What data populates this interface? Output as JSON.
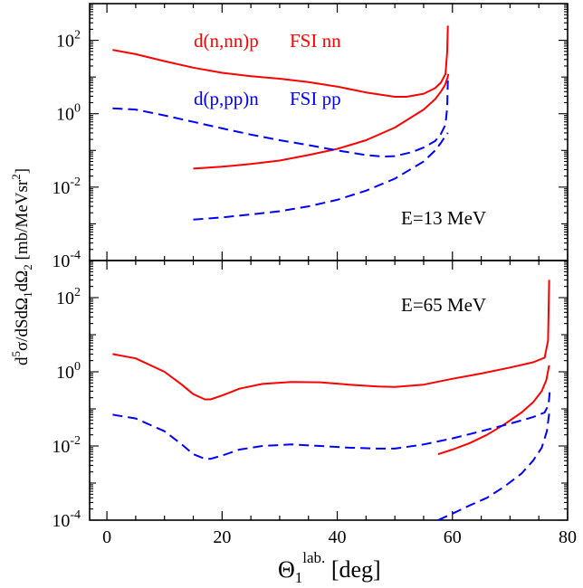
{
  "chart_data": [
    {
      "type": "line",
      "panel": "top",
      "x_scale": "linear",
      "y_scale": "log",
      "xlim": [
        -3,
        80
      ],
      "ylim": [
        0.0001,
        1000
      ],
      "annotation": "E=13 MeV",
      "legend": [
        {
          "text": "d(n,nn)p",
          "color": "#ff0000"
        },
        {
          "text": "FSI nn",
          "color": "#ff0000"
        },
        {
          "text": "d(p,pp)n",
          "color": "#0000ff"
        },
        {
          "text": "FSI pp",
          "color": "#0000ff"
        }
      ],
      "series": [
        {
          "color": "#ff0000",
          "dash": "solid",
          "x": [
            1,
            5,
            10,
            15,
            20,
            25,
            30,
            35,
            40,
            45,
            50,
            52,
            55,
            57,
            58,
            58.8,
            59.1,
            59.2
          ],
          "y": [
            55,
            42,
            27,
            18,
            13,
            10.5,
            9,
            7.3,
            5.5,
            3.8,
            2.9,
            2.9,
            3.5,
            5,
            7,
            12,
            50,
            250
          ]
        },
        {
          "color": "#ff0000",
          "dash": "solid",
          "x": [
            15,
            20,
            25,
            30,
            35,
            40,
            45,
            50,
            55,
            57,
            58,
            58.7,
            59.1,
            59.3
          ],
          "y": [
            0.032,
            0.036,
            0.043,
            0.053,
            0.075,
            0.11,
            0.19,
            0.42,
            1.3,
            2.5,
            4,
            6,
            9,
            12
          ]
        },
        {
          "color": "#0000ff",
          "dash": "dashed",
          "x": [
            1,
            5,
            10,
            15,
            20,
            25,
            30,
            35,
            40,
            45,
            48,
            50,
            53,
            55,
            57,
            58,
            58.8,
            59.1,
            59.2
          ],
          "y": [
            1.4,
            1.3,
            0.9,
            0.6,
            0.4,
            0.27,
            0.19,
            0.14,
            0.1,
            0.075,
            0.068,
            0.07,
            0.09,
            0.12,
            0.18,
            0.28,
            0.5,
            1.5,
            8
          ]
        },
        {
          "color": "#0000ff",
          "dash": "dashed",
          "x": [
            15,
            20,
            25,
            30,
            35,
            40,
            45,
            50,
            55,
            57,
            58,
            58.8,
            59.2
          ],
          "y": [
            0.0013,
            0.0015,
            0.0018,
            0.0022,
            0.003,
            0.0045,
            0.008,
            0.017,
            0.05,
            0.1,
            0.16,
            0.25,
            0.3
          ]
        }
      ]
    },
    {
      "type": "line",
      "panel": "bottom",
      "x_scale": "linear",
      "y_scale": "log",
      "xlim": [
        -3,
        80
      ],
      "ylim": [
        0.0001,
        1000
      ],
      "annotation": "E=65 MeV",
      "series": [
        {
          "color": "#ff0000",
          "dash": "solid",
          "x": [
            1,
            5,
            10,
            13,
            15,
            17,
            18,
            20,
            23,
            27,
            32,
            37,
            42,
            47,
            50,
            55,
            60,
            65,
            70,
            74,
            76,
            76.6,
            76.8
          ],
          "y": [
            3,
            2.3,
            1,
            0.45,
            0.25,
            0.18,
            0.18,
            0.23,
            0.35,
            0.47,
            0.53,
            0.52,
            0.45,
            0.4,
            0.39,
            0.45,
            0.65,
            0.9,
            1.3,
            1.8,
            2.4,
            7,
            300
          ]
        },
        {
          "color": "#ff0000",
          "dash": "solid",
          "x": [
            57.5,
            60,
            63,
            66,
            69,
            72,
            74,
            75.5,
            76.3,
            76.8
          ],
          "y": [
            0.006,
            0.008,
            0.012,
            0.02,
            0.038,
            0.08,
            0.15,
            0.3,
            0.6,
            1.5
          ]
        },
        {
          "color": "#0000ff",
          "dash": "dashed",
          "x": [
            1,
            5,
            10,
            13,
            15,
            17,
            18,
            20,
            23,
            27,
            32,
            37,
            42,
            47,
            50,
            55,
            60,
            65,
            70,
            74,
            76,
            76.7,
            76.9
          ],
          "y": [
            0.07,
            0.055,
            0.025,
            0.011,
            0.006,
            0.0045,
            0.0045,
            0.0055,
            0.008,
            0.01,
            0.011,
            0.01,
            0.009,
            0.0085,
            0.0085,
            0.011,
            0.016,
            0.025,
            0.04,
            0.06,
            0.08,
            0.13,
            0.3
          ]
        },
        {
          "color": "#0000ff",
          "dash": "dashed",
          "x": [
            57.5,
            60,
            63,
            66,
            69,
            72,
            74,
            75.5,
            76.4,
            76.9
          ],
          "y": [
            0.0001,
            0.00015,
            0.00025,
            0.0004,
            0.0008,
            0.0018,
            0.004,
            0.009,
            0.025,
            0.1
          ]
        }
      ]
    }
  ],
  "axes": {
    "x_ticks": [
      "0",
      "20",
      "40",
      "60",
      "80"
    ],
    "x_tick_values": [
      0,
      20,
      40,
      60,
      80
    ],
    "y_tick_values": [
      0.0001,
      0.01,
      1,
      100
    ],
    "y_tick_bases": [
      "10",
      "10",
      "10",
      "10"
    ],
    "y_tick_exponents": [
      "-4",
      "-2",
      "0",
      "2"
    ],
    "x_label_symbol": "Θ",
    "x_label_subscript": "1",
    "x_label_superscript": "lab.",
    "x_label_unit": "[deg]",
    "y_label_parts": [
      {
        "t": "d",
        "s": "normal"
      },
      {
        "t": "5",
        "s": "sup"
      },
      {
        "t": "σ/dSdΩ",
        "s": "normal"
      },
      {
        "t": "1",
        "s": "sub"
      },
      {
        "t": "dΩ",
        "s": "normal"
      },
      {
        "t": "2",
        "s": "sub"
      },
      {
        "t": " [mb/MeVsr",
        "s": "normal"
      },
      {
        "t": "2",
        "s": "sup"
      },
      {
        "t": "]",
        "s": "normal"
      }
    ]
  }
}
